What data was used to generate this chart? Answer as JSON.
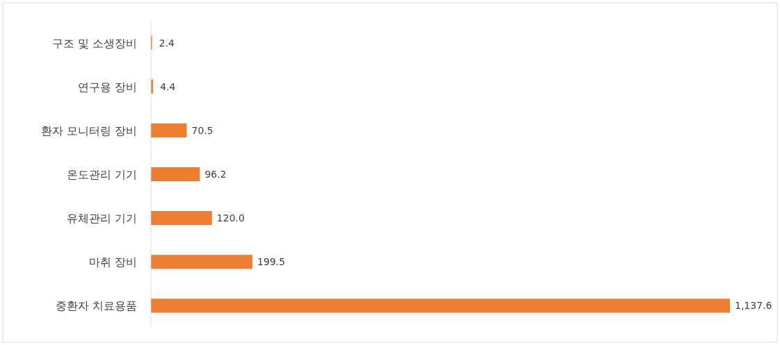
{
  "chart_data": {
    "type": "bar",
    "orientation": "horizontal",
    "categories": [
      "구조 및 소생장비",
      "연구용 장비",
      "환자 모니터링 장비",
      "온도관리 기기",
      "유체관리 기기",
      "마취 장비",
      "중환자 치료용품"
    ],
    "values": [
      2.4,
      4.4,
      70.5,
      96.2,
      120.0,
      199.5,
      1137.6
    ],
    "value_labels": [
      "2.4",
      "4.4",
      "70.5",
      "96.2",
      "120.0",
      "199.5",
      "1,137.6"
    ],
    "color": "#ed7d31"
  }
}
